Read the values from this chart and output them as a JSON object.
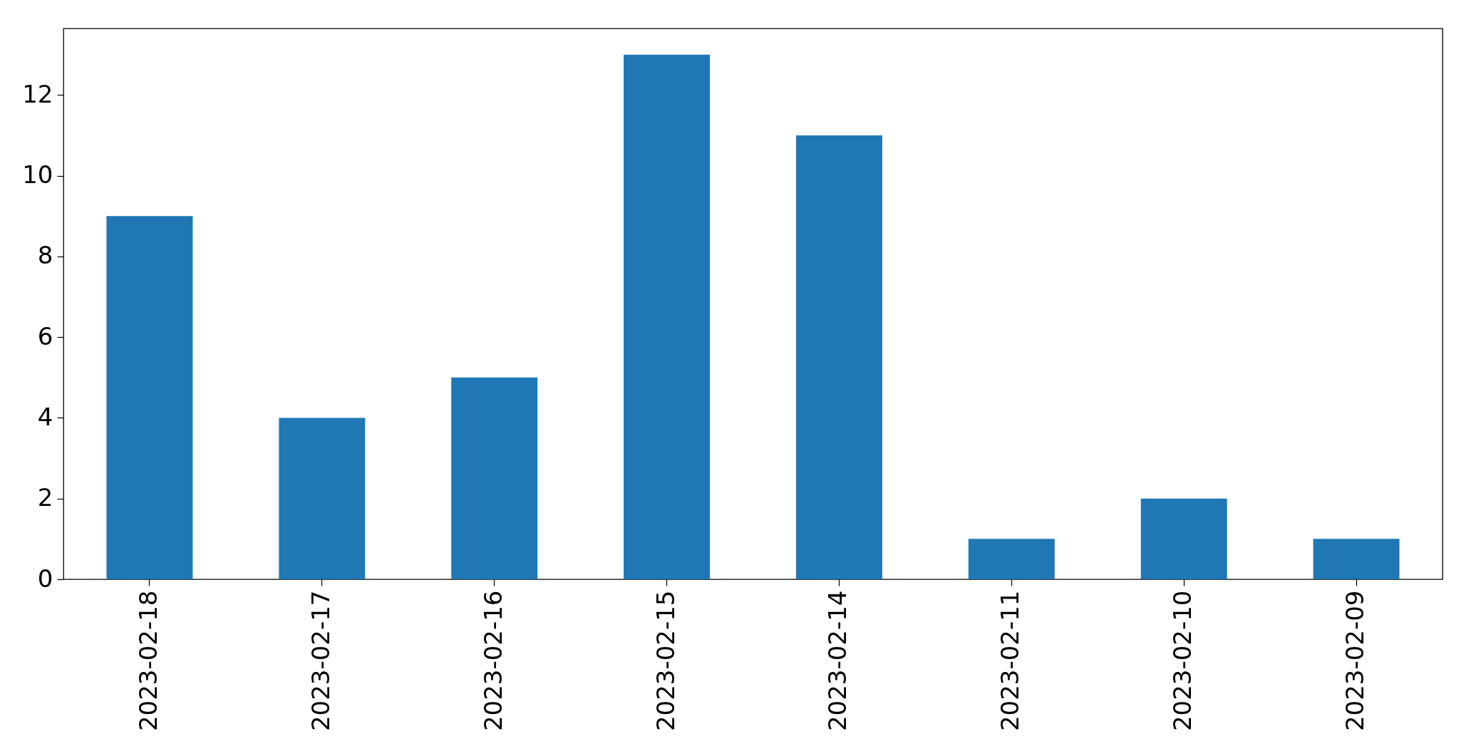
{
  "chart_data": {
    "type": "bar",
    "categories": [
      "2023-02-18",
      "2023-02-17",
      "2023-02-16",
      "2023-02-15",
      "2023-02-14",
      "2023-02-11",
      "2023-02-10",
      "2023-02-09"
    ],
    "values": [
      9,
      4,
      5,
      13,
      11,
      1,
      2,
      1
    ],
    "color": "#1f77b4",
    "ylim": [
      0,
      13.65
    ],
    "yticks": [
      0,
      2,
      4,
      6,
      8,
      10,
      12
    ],
    "grid": false
  }
}
